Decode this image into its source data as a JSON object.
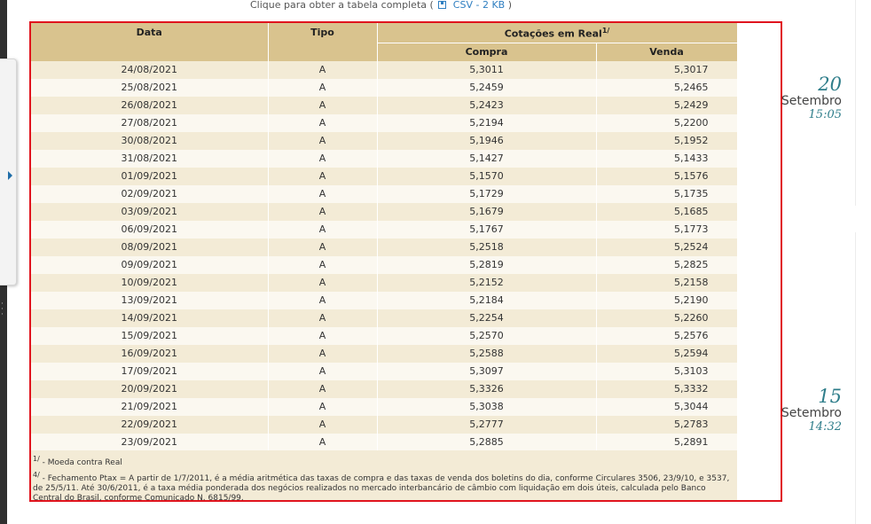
{
  "top_link": {
    "text": "Clique para obter a tabela completa (",
    "csv_label": "CSV - 2 KB",
    "close": ")"
  },
  "table": {
    "headers": {
      "data": "Data",
      "tipo": "Tipo",
      "cotacoes": "Cotações em Real",
      "cotacoes_sup": "1/",
      "compra": "Compra",
      "venda": "Venda"
    },
    "rows": [
      [
        "24/08/2021",
        "A",
        "5,3011",
        "5,3017"
      ],
      [
        "25/08/2021",
        "A",
        "5,2459",
        "5,2465"
      ],
      [
        "26/08/2021",
        "A",
        "5,2423",
        "5,2429"
      ],
      [
        "27/08/2021",
        "A",
        "5,2194",
        "5,2200"
      ],
      [
        "30/08/2021",
        "A",
        "5,1946",
        "5,1952"
      ],
      [
        "31/08/2021",
        "A",
        "5,1427",
        "5,1433"
      ],
      [
        "01/09/2021",
        "A",
        "5,1570",
        "5,1576"
      ],
      [
        "02/09/2021",
        "A",
        "5,1729",
        "5,1735"
      ],
      [
        "03/09/2021",
        "A",
        "5,1679",
        "5,1685"
      ],
      [
        "06/09/2021",
        "A",
        "5,1767",
        "5,1773"
      ],
      [
        "08/09/2021",
        "A",
        "5,2518",
        "5,2524"
      ],
      [
        "09/09/2021",
        "A",
        "5,2819",
        "5,2825"
      ],
      [
        "10/09/2021",
        "A",
        "5,2152",
        "5,2158"
      ],
      [
        "13/09/2021",
        "A",
        "5,2184",
        "5,2190"
      ],
      [
        "14/09/2021",
        "A",
        "5,2254",
        "5,2260"
      ],
      [
        "15/09/2021",
        "A",
        "5,2570",
        "5,2576"
      ],
      [
        "16/09/2021",
        "A",
        "5,2588",
        "5,2594"
      ],
      [
        "17/09/2021",
        "A",
        "5,3097",
        "5,3103"
      ],
      [
        "20/09/2021",
        "A",
        "5,3326",
        "5,3332"
      ],
      [
        "21/09/2021",
        "A",
        "5,3038",
        "5,3044"
      ],
      [
        "22/09/2021",
        "A",
        "5,2777",
        "5,2783"
      ],
      [
        "23/09/2021",
        "A",
        "5,2885",
        "5,2891"
      ]
    ]
  },
  "notes": {
    "n1_sup": "1/",
    "n1_text": " - Moeda contra Real",
    "n4_sup": "4/",
    "n4_text": " - Fechamento Ptax = A partir de 1/7/2011, é a média aritmética das taxas de compra e das taxas de venda dos boletins do dia, conforme Circulares 3506, 23/9/10, e 3537, de 25/5/11. Até 30/6/2011, é a taxa média ponderada dos negócios realizados no mercado interbancário de câmbio com liquidação em dois úteis, calculada pelo Banco Central do Brasil, conforme Comunicado N. 6815/99."
  },
  "dates": [
    {
      "day": "20",
      "month": "Setembro",
      "time": "15:05"
    },
    {
      "day": "15",
      "month": "Setembro",
      "time": "14:32"
    }
  ],
  "colors": {
    "header_bg": "#d9c38e",
    "row_odd": "#f3ebd6",
    "row_even": "#fbf8f0",
    "frame": "#e0141e",
    "accent": "#2e7d8a",
    "link": "#2f7fc1"
  },
  "icons": {
    "csv": "save-icon",
    "sidebar_toggle": "chevron-right-icon"
  }
}
